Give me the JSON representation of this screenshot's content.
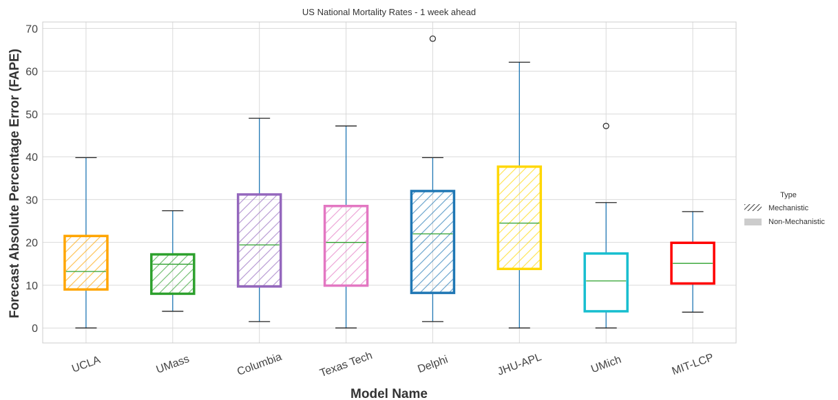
{
  "chart_data": {
    "type": "box",
    "title": "US National Mortality Rates - 1 week ahead",
    "xlabel": "Model Name",
    "ylabel": "Forecast Absolute Percentage Error (FAPE)",
    "ylim": [
      -3.5,
      71.5
    ],
    "yticks": [
      0,
      10,
      20,
      30,
      40,
      50,
      60,
      70
    ],
    "grid": true,
    "legend": {
      "title": "Type",
      "position": "right",
      "entries": [
        {
          "label": "Mechanistic",
          "hatched": true
        },
        {
          "label": "Non-Mechanistic",
          "hatched": false
        }
      ]
    },
    "boxes": [
      {
        "name": "UCLA",
        "whisker_low": 0,
        "q1": 9,
        "median": 13.2,
        "q3": 21.5,
        "whisker_high": 39.8,
        "outliers": [],
        "color": "#ffa500",
        "mechanistic": true
      },
      {
        "name": "UMass",
        "whisker_low": 3.9,
        "q1": 8,
        "median": 14.9,
        "q3": 17.2,
        "whisker_high": 27.4,
        "outliers": [],
        "color": "#2ca02c",
        "mechanistic": true
      },
      {
        "name": "Columbia",
        "whisker_low": 1.5,
        "q1": 9.7,
        "median": 19.4,
        "q3": 31.2,
        "whisker_high": 49,
        "outliers": [],
        "color": "#9467bd",
        "mechanistic": true
      },
      {
        "name": "Texas Tech",
        "whisker_low": 0,
        "q1": 9.9,
        "median": 20,
        "q3": 28.5,
        "whisker_high": 47.2,
        "outliers": [],
        "color": "#e377c2",
        "mechanistic": true
      },
      {
        "name": "Delphi",
        "whisker_low": 1.5,
        "q1": 8.2,
        "median": 22,
        "q3": 32,
        "whisker_high": 39.8,
        "outliers": [
          67.6
        ],
        "color": "#1f77b4",
        "mechanistic": true
      },
      {
        "name": "JHU-APL",
        "whisker_low": 0,
        "q1": 13.8,
        "median": 24.5,
        "q3": 37.7,
        "whisker_high": 62.1,
        "outliers": [],
        "color": "#ffd700",
        "mechanistic": true
      },
      {
        "name": "UMich",
        "whisker_low": 0,
        "q1": 3.9,
        "median": 11,
        "q3": 17.4,
        "whisker_high": 29.3,
        "outliers": [
          47.2
        ],
        "color": "#17becf",
        "mechanistic": false
      },
      {
        "name": "MIT-LCP",
        "whisker_low": 3.7,
        "q1": 10.4,
        "median": 15.1,
        "q3": 19.9,
        "whisker_high": 27.2,
        "outliers": [],
        "color": "#ff0000",
        "mechanistic": false
      }
    ],
    "style": {
      "whisker_color": "#1f77b4",
      "median_color": "#2ca02c",
      "grid_color": "#d9d9d9",
      "frame_color": "#cccccc",
      "outlier_color": "#333333",
      "legend_swatch": "#cccccc"
    }
  }
}
